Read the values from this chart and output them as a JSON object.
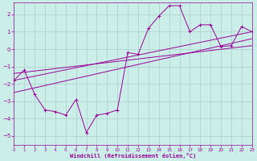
{
  "background_color": "#cceee8",
  "grid_color": "#aacccc",
  "line_color": "#990099",
  "xlabel": "Windchill (Refroidissement éolien,°C)",
  "xlim": [
    0,
    23
  ],
  "ylim": [
    -5.5,
    2.7
  ],
  "yticks": [
    -5,
    -4,
    -3,
    -2,
    -1,
    0,
    1,
    2
  ],
  "xticks": [
    0,
    1,
    2,
    3,
    4,
    5,
    6,
    7,
    8,
    9,
    10,
    11,
    12,
    13,
    14,
    15,
    16,
    17,
    18,
    19,
    20,
    21,
    22,
    23
  ],
  "series1_x": [
    0,
    1,
    2,
    3,
    4,
    5,
    6,
    7,
    8,
    9,
    10,
    11,
    12,
    13,
    14,
    15,
    16,
    17,
    18,
    19,
    20,
    21,
    22,
    23
  ],
  "series1_y": [
    -1.8,
    -1.2,
    -2.6,
    -3.5,
    -3.6,
    -3.8,
    -2.9,
    -4.8,
    -3.8,
    -3.7,
    -3.5,
    -0.2,
    -0.3,
    1.2,
    1.9,
    2.5,
    2.5,
    1.0,
    1.4,
    1.4,
    0.15,
    0.2,
    1.3,
    1.0
  ],
  "line1_x": [
    0,
    23
  ],
  "line1_y": [
    -1.8,
    1.0
  ],
  "line2_x": [
    0,
    23
  ],
  "line2_y": [
    -2.5,
    0.6
  ],
  "line3_x": [
    0,
    23
  ],
  "line3_y": [
    -1.4,
    0.2
  ]
}
